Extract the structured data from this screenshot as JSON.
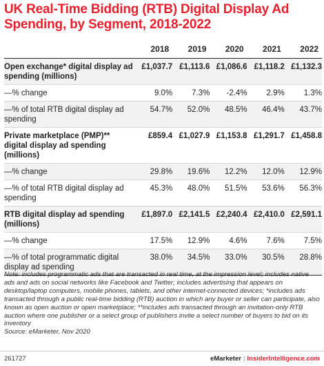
{
  "title": "UK Real-Time Bidding (RTB) Digital Display Ad Spending, by Segment, 2018-2022",
  "chart_data": {
    "type": "table",
    "title": "UK Real-Time Bidding (RTB) Digital Display Ad Spending, by Segment, 2018-2022",
    "columns": [
      "2018",
      "2019",
      "2020",
      "2021",
      "2022"
    ],
    "rows": [
      {
        "label": "Open exchange* digital display ad spending (millions)",
        "values": [
          "£1,037.7",
          "£1,113.6",
          "£1,086.6",
          "£1,118.2",
          "£1,132.3"
        ]
      },
      {
        "label": "—% change",
        "values": [
          "9.0%",
          "7.3%",
          "-2.4%",
          "2.9%",
          "1.3%"
        ]
      },
      {
        "label": "—% of total RTB digital display ad spending",
        "values": [
          "54.7%",
          "52.0%",
          "48.5%",
          "46.4%",
          "43.7%"
        ]
      },
      {
        "label": "Private marketplace (PMP)** digital  display ad spending (millions)",
        "values": [
          "£859.4",
          "£1,027.9",
          "£1,153.8",
          "£1,291.7",
          "£1,458.8"
        ]
      },
      {
        "label": "—% change",
        "values": [
          "29.8%",
          "19.6%",
          "12.2%",
          "12.0%",
          "12.9%"
        ]
      },
      {
        "label": "—% of total RTB digital display ad spending",
        "values": [
          "45.3%",
          "48.0%",
          "51.5%",
          "53.6%",
          "56.3%"
        ]
      },
      {
        "label": "RTB digital display ad spending (millions)",
        "values": [
          "£1,897.0",
          "£2,141.5",
          "£2,240.4",
          "£2,410.0",
          "£2,591.1"
        ]
      },
      {
        "label": "—% change",
        "values": [
          "17.5%",
          "12.9%",
          "4.6%",
          "7.6%",
          "7.5%"
        ]
      },
      {
        "label": "—% of total programmatic digital display ad spending",
        "values": [
          "38.0%",
          "34.5%",
          "33.0%",
          "30.5%",
          "28.8%"
        ]
      }
    ]
  },
  "note": "Note: includes programmatic ads that are transacted in real time, at the impression level; includes native ads and ads on social networks like Facebook and Twitter; includes advertising that appears on desktop/laptop computers, mobile phones, tablets, and other internet-connected devices; *includes ads transacted through a public real-time bidding (RTB) auction in which any buyer or seller can participate, also known as open auction or open marketplace; **includes ads transacted through an invitation-only RTB auction where one publisher or a select group of publishers invite a select number of buyers to bid on its inventory",
  "source": "Source: eMarketer, Nov 2020",
  "footer": {
    "id": "261727",
    "brand1": "eMarketer",
    "separator": "|",
    "brand2": "InsiderIntelligence.com"
  }
}
